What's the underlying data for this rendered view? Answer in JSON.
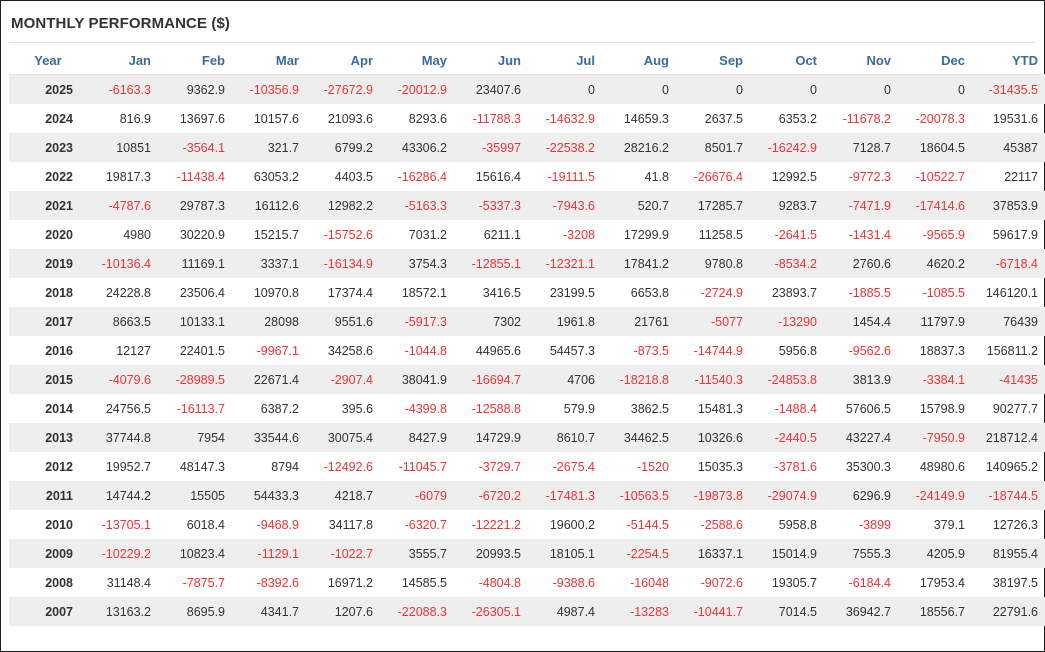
{
  "title": "MONTHLY PERFORMANCE ($)",
  "colors": {
    "header_text": "#3a6b9f",
    "negative_text": "#ee3333",
    "alt_row_bg": "#eeeeee"
  },
  "columns": [
    "Year",
    "Jan",
    "Feb",
    "Mar",
    "Apr",
    "May",
    "Jun",
    "Jul",
    "Aug",
    "Sep",
    "Oct",
    "Nov",
    "Dec",
    "YTD"
  ],
  "rows": [
    {
      "year": "2025",
      "values": [
        "-6163.3",
        "9362.9",
        "-10356.9",
        "-27672.9",
        "-20012.9",
        "23407.6",
        "0",
        "0",
        "0",
        "0",
        "0",
        "0",
        "-31435.5"
      ]
    },
    {
      "year": "2024",
      "values": [
        "816.9",
        "13697.6",
        "10157.6",
        "21093.6",
        "8293.6",
        "-11788.3",
        "-14632.9",
        "14659.3",
        "2637.5",
        "6353.2",
        "-11678.2",
        "-20078.3",
        "19531.6"
      ]
    },
    {
      "year": "2023",
      "values": [
        "10851",
        "-3564.1",
        "321.7",
        "6799.2",
        "43306.2",
        "-35997",
        "-22538.2",
        "28216.2",
        "8501.7",
        "-16242.9",
        "7128.7",
        "18604.5",
        "45387"
      ]
    },
    {
      "year": "2022",
      "values": [
        "19817.3",
        "-11438.4",
        "63053.2",
        "4403.5",
        "-16286.4",
        "15616.4",
        "-19111.5",
        "41.8",
        "-26676.4",
        "12992.5",
        "-9772.3",
        "-10522.7",
        "22117"
      ]
    },
    {
      "year": "2021",
      "values": [
        "-4787.6",
        "29787.3",
        "16112.6",
        "12982.2",
        "-5163.3",
        "-5337.3",
        "-7943.6",
        "520.7",
        "17285.7",
        "9283.7",
        "-7471.9",
        "-17414.6",
        "37853.9"
      ]
    },
    {
      "year": "2020",
      "values": [
        "4980",
        "30220.9",
        "15215.7",
        "-15752.6",
        "7031.2",
        "6211.1",
        "-3208",
        "17299.9",
        "11258.5",
        "-2641.5",
        "-1431.4",
        "-9565.9",
        "59617.9"
      ]
    },
    {
      "year": "2019",
      "values": [
        "-10136.4",
        "11169.1",
        "3337.1",
        "-16134.9",
        "3754.3",
        "-12855.1",
        "-12321.1",
        "17841.2",
        "9780.8",
        "-8534.2",
        "2760.6",
        "4620.2",
        "-6718.4"
      ]
    },
    {
      "year": "2018",
      "values": [
        "24228.8",
        "23506.4",
        "10970.8",
        "17374.4",
        "18572.1",
        "3416.5",
        "23199.5",
        "6653.8",
        "-2724.9",
        "23893.7",
        "-1885.5",
        "-1085.5",
        "146120.1"
      ]
    },
    {
      "year": "2017",
      "values": [
        "8663.5",
        "10133.1",
        "28098",
        "9551.6",
        "-5917.3",
        "7302",
        "1961.8",
        "21761",
        "-5077",
        "-13290",
        "1454.4",
        "11797.9",
        "76439"
      ]
    },
    {
      "year": "2016",
      "values": [
        "12127",
        "22401.5",
        "-9967.1",
        "34258.6",
        "-1044.8",
        "44965.6",
        "54457.3",
        "-873.5",
        "-14744.9",
        "5956.8",
        "-9562.6",
        "18837.3",
        "156811.2"
      ]
    },
    {
      "year": "2015",
      "values": [
        "-4079.6",
        "-28989.5",
        "22671.4",
        "-2907.4",
        "38041.9",
        "-16694.7",
        "4706",
        "-18218.8",
        "-11540.3",
        "-24853.8",
        "3813.9",
        "-3384.1",
        "-41435"
      ]
    },
    {
      "year": "2014",
      "values": [
        "24756.5",
        "-16113.7",
        "6387.2",
        "395.6",
        "-4399.8",
        "-12588.8",
        "579.9",
        "3862.5",
        "15481.3",
        "-1488.4",
        "57606.5",
        "15798.9",
        "90277.7"
      ]
    },
    {
      "year": "2013",
      "values": [
        "37744.8",
        "7954",
        "33544.6",
        "30075.4",
        "8427.9",
        "14729.9",
        "8610.7",
        "34462.5",
        "10326.6",
        "-2440.5",
        "43227.4",
        "-7950.9",
        "218712.4"
      ]
    },
    {
      "year": "2012",
      "values": [
        "19952.7",
        "48147.3",
        "8794",
        "-12492.6",
        "-11045.7",
        "-3729.7",
        "-2675.4",
        "-1520",
        "15035.3",
        "-3781.6",
        "35300.3",
        "48980.6",
        "140965.2"
      ]
    },
    {
      "year": "2011",
      "values": [
        "14744.2",
        "15505",
        "54433.3",
        "4218.7",
        "-6079",
        "-6720.2",
        "-17481.3",
        "-10563.5",
        "-19873.8",
        "-29074.9",
        "6296.9",
        "-24149.9",
        "-18744.5"
      ]
    },
    {
      "year": "2010",
      "values": [
        "-13705.1",
        "6018.4",
        "-9468.9",
        "34117.8",
        "-6320.7",
        "-12221.2",
        "19600.2",
        "-5144.5",
        "-2588.6",
        "5958.8",
        "-3899",
        "379.1",
        "12726.3"
      ]
    },
    {
      "year": "2009",
      "values": [
        "-10229.2",
        "10823.4",
        "-1129.1",
        "-1022.7",
        "3555.7",
        "20993.5",
        "18105.1",
        "-2254.5",
        "16337.1",
        "15014.9",
        "7555.3",
        "4205.9",
        "81955.4"
      ]
    },
    {
      "year": "2008",
      "values": [
        "31148.4",
        "-7875.7",
        "-8392.6",
        "16971.2",
        "14585.5",
        "-4804.8",
        "-9388.6",
        "-16048",
        "-9072.6",
        "19305.7",
        "-6184.4",
        "17953.4",
        "38197.5"
      ]
    },
    {
      "year": "2007",
      "values": [
        "13163.2",
        "8695.9",
        "4341.7",
        "1207.6",
        "-22088.3",
        "-26305.1",
        "4987.4",
        "-13283",
        "-10441.7",
        "7014.5",
        "36942.7",
        "18556.7",
        "22791.6"
      ]
    }
  ]
}
